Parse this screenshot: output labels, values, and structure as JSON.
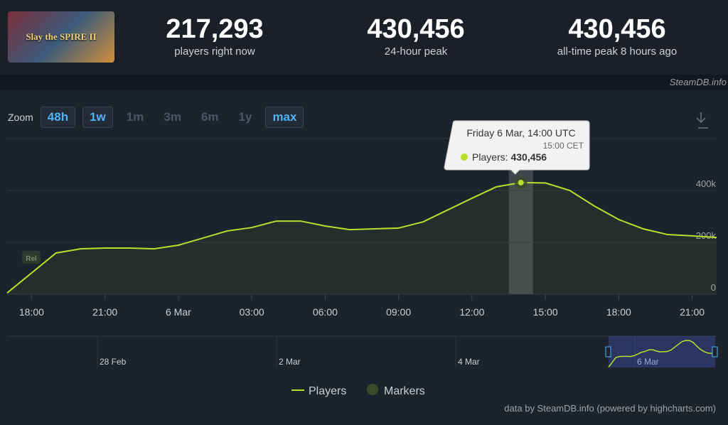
{
  "header": {
    "logo_text": "Slay the SPIRE II",
    "stats": [
      {
        "value": "217,293",
        "label": "players right now"
      },
      {
        "value": "430,456",
        "label": "24-hour peak"
      },
      {
        "value": "430,456",
        "label": "all-time peak 8 hours ago"
      }
    ],
    "source": "SteamDB.info"
  },
  "zoom": {
    "label": "Zoom",
    "buttons": [
      {
        "text": "48h",
        "enabled": true
      },
      {
        "text": "1w",
        "enabled": true
      },
      {
        "text": "1m",
        "enabled": false
      },
      {
        "text": "3m",
        "enabled": false
      },
      {
        "text": "6m",
        "enabled": false
      },
      {
        "text": "1y",
        "enabled": false
      },
      {
        "text": "max",
        "enabled": true
      }
    ]
  },
  "chart_data": {
    "type": "line",
    "x": [
      17,
      19,
      20,
      21,
      22,
      23,
      24,
      26,
      27,
      28,
      29,
      30,
      31,
      32,
      33,
      34,
      36,
      37,
      38,
      39,
      40,
      41,
      42,
      43,
      44,
      45,
      46
    ],
    "series": [
      {
        "name": "Players",
        "color": "#b6e02c",
        "values": [
          5000,
          159000,
          175000,
          178000,
          178000,
          175000,
          189000,
          244000,
          257000,
          282000,
          282000,
          263000,
          249000,
          252000,
          255000,
          279000,
          370000,
          414000,
          430456,
          429000,
          400000,
          340000,
          288000,
          252000,
          230000,
          225000,
          219000
        ]
      }
    ],
    "markers": {
      "name": "Markers",
      "color": "#3c4a2e"
    },
    "annotation": "Rel",
    "xlim": [
      17,
      46
    ],
    "xticks": [
      {
        "value": 18,
        "label": "18:00"
      },
      {
        "value": 21,
        "label": "21:00"
      },
      {
        "value": 24,
        "label": "6 Mar"
      },
      {
        "value": 27,
        "label": "03:00"
      },
      {
        "value": 30,
        "label": "06:00"
      },
      {
        "value": 33,
        "label": "09:00"
      },
      {
        "value": 36,
        "label": "12:00"
      },
      {
        "value": 39,
        "label": "15:00"
      },
      {
        "value": 42,
        "label": "18:00"
      },
      {
        "value": 45,
        "label": "21:00"
      }
    ],
    "ylim": [
      0,
      600000
    ],
    "yticks": [
      0,
      {
        "value": 200000,
        "label": "200k"
      },
      {
        "value": 400000,
        "label": "400k"
      }
    ],
    "grid": true,
    "tooltip": {
      "index": 18,
      "title": "Friday 6 Mar, 14:00 UTC",
      "subtitle": "15:00 CET",
      "series_label": "Players:",
      "value_label": "430,456"
    },
    "navigator": {
      "labels": [
        "28 Feb",
        "2 Mar",
        "4 Mar",
        "6 Mar"
      ]
    }
  },
  "credits": "data by SteamDB.info (powered by highcharts.com)"
}
